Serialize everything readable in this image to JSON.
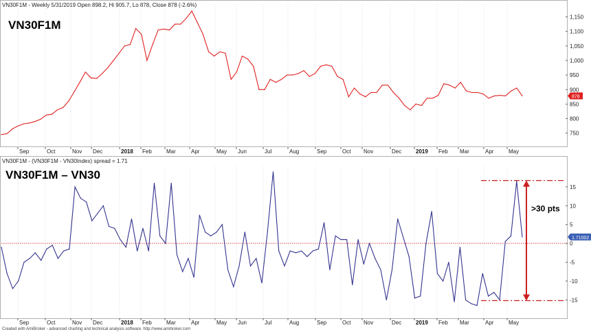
{
  "header_top": "VN30F1M - Weekly 5/31/2019 Open 898.2, Hi 905.7, Lo 878, Close 878 (-2.6%)",
  "header_bottom": "VN30F1M - (VN30F1M - VN30Index) spread = 1.71",
  "footer": "Created with AmiBroker - advanced charting and technical analysis software. http://www.amibroker.com",
  "colors": {
    "price_line": "#e02020",
    "spread_line": "#33338f",
    "annotation": "#cc1f1f",
    "zero_line": "#e04040",
    "grid": "#c8c8c8"
  },
  "chart_data": [
    {
      "type": "line",
      "title": "VN30F1M",
      "ylim": [
        735,
        1175
      ],
      "yticks": [
        750,
        800,
        850,
        900,
        950,
        1000,
        1050,
        1100,
        1150
      ],
      "ytick_labels": [
        "750",
        "800",
        "850",
        "900",
        "950",
        "1,000",
        "1,050",
        "1,100",
        "1,150"
      ],
      "last_value_label": "878",
      "xtick_labels": [
        "Sep",
        "Oct",
        "Nov",
        "Dec",
        "2018",
        "Feb",
        "Mar",
        "Apr",
        "May",
        "Jun",
        "Jul",
        "Aug",
        "Sep",
        "Oct",
        "Nov",
        "Dec",
        "2019",
        "Feb",
        "Mar",
        "Apr",
        "May"
      ],
      "series": [
        {
          "values": [
            745,
            748,
            765,
            775,
            782,
            785,
            790,
            798,
            812,
            815,
            830,
            838,
            860,
            892,
            925,
            960,
            940,
            938,
            955,
            975,
            1000,
            1025,
            1050,
            1055,
            1110,
            1090,
            1000,
            1055,
            1105,
            1108,
            1105,
            1125,
            1125,
            1145,
            1170,
            1130,
            1090,
            1030,
            1015,
            1030,
            1025,
            935,
            960,
            1015,
            1005,
            980,
            900,
            900,
            935,
            925,
            935,
            950,
            950,
            955,
            965,
            945,
            955,
            980,
            985,
            980,
            945,
            935,
            875,
            905,
            885,
            875,
            890,
            890,
            915,
            915,
            890,
            870,
            845,
            830,
            850,
            845,
            870,
            870,
            880,
            920,
            915,
            905,
            925,
            895,
            890,
            890,
            885,
            870,
            878,
            880,
            878,
            895,
            905,
            878
          ]
        }
      ]
    },
    {
      "type": "line",
      "title": "VN30F1M – VN30",
      "ylim": [
        -17.5,
        19
      ],
      "yticks": [
        -15,
        -10,
        -5,
        0,
        5,
        10,
        15
      ],
      "ytick_labels": [
        "-15",
        "-10",
        "-5",
        "0",
        "5",
        "10",
        "15"
      ],
      "last_value_label": "1.71002",
      "annotation": ">30 pts",
      "xtick_labels": [
        "Sep",
        "Oct",
        "Nov",
        "Dec",
        "2018",
        "Feb",
        "Mar",
        "Apr",
        "May",
        "Jun",
        "Jul",
        "Aug",
        "Sep",
        "Oct",
        "Nov",
        "Dec",
        "2019",
        "Feb",
        "Mar",
        "Apr",
        "May"
      ],
      "series": [
        {
          "values": [
            -1,
            -8,
            -12,
            -10,
            -5,
            -4,
            -2.5,
            -4.5,
            -1.5,
            -0.5,
            -4,
            -2,
            -1.5,
            15,
            12,
            11,
            6,
            8,
            10,
            4.5,
            4,
            1,
            -1,
            6.5,
            -2,
            4,
            -2,
            16,
            2,
            0,
            16,
            -3,
            -7.5,
            -4,
            -9,
            7.5,
            3,
            2,
            3,
            5,
            -7,
            -11.5,
            -6,
            3,
            -6,
            -4,
            -10.5,
            3,
            19,
            -2,
            -6,
            -2,
            -2.5,
            -2,
            -3.5,
            -2,
            -1.5,
            5.5,
            -7,
            2,
            1,
            1,
            -11,
            1,
            -5.5,
            0,
            -4,
            -7,
            -15,
            -7,
            6.5,
            1.5,
            -3.5,
            -14.5,
            -14,
            0,
            8.5,
            -8,
            -10,
            -5,
            -15.5,
            -1,
            -15,
            -16,
            -16.5,
            -8,
            -14,
            -13,
            -15,
            0.5,
            2,
            16.5,
            1.7
          ]
        }
      ]
    }
  ]
}
